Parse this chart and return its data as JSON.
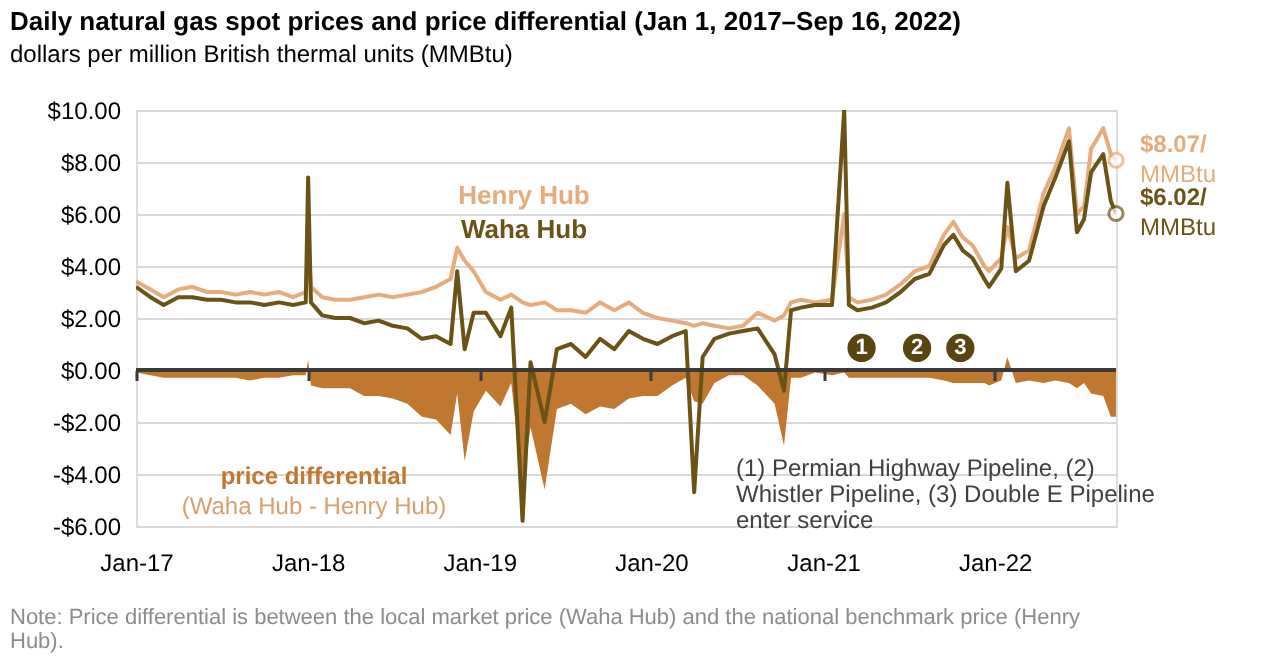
{
  "chart_data": {
    "type": "line",
    "title": "Daily natural gas spot prices and price differential (Jan 1, 2017–Sep 16, 2022)",
    "subtitle": "dollars per million British thermal units (MMBtu)",
    "x": [
      "2017-01-01",
      "2017-02-01",
      "2017-03-01",
      "2017-04-01",
      "2017-05-01",
      "2017-06-01",
      "2017-07-01",
      "2017-08-01",
      "2017-09-01",
      "2017-10-01",
      "2017-11-01",
      "2017-12-01",
      "2017-12-28",
      "2018-01-02",
      "2018-01-08",
      "2018-02-01",
      "2018-03-01",
      "2018-04-01",
      "2018-05-01",
      "2018-06-01",
      "2018-07-01",
      "2018-08-01",
      "2018-09-01",
      "2018-10-01",
      "2018-11-01",
      "2018-11-15",
      "2018-12-01",
      "2018-12-20",
      "2019-01-15",
      "2019-02-15",
      "2019-03-10",
      "2019-04-03",
      "2019-04-20",
      "2019-05-20",
      "2019-06-15",
      "2019-07-15",
      "2019-08-15",
      "2019-09-15",
      "2019-10-15",
      "2019-11-15",
      "2019-12-15",
      "2020-01-15",
      "2020-02-15",
      "2020-03-15",
      "2020-04-02",
      "2020-04-20",
      "2020-05-15",
      "2020-06-15",
      "2020-07-15",
      "2020-08-15",
      "2020-09-20",
      "2020-10-10",
      "2020-10-25",
      "2020-11-15",
      "2020-12-15",
      "2021-01-20",
      "2021-02-15",
      "2021-02-25",
      "2021-03-15",
      "2021-04-15",
      "2021-05-15",
      "2021-06-15",
      "2021-07-15",
      "2021-08-15",
      "2021-09-15",
      "2021-10-05",
      "2021-10-25",
      "2021-11-15",
      "2021-12-10",
      "2021-12-20",
      "2022-01-15",
      "2022-01-28",
      "2022-02-15",
      "2022-03-15",
      "2022-04-15",
      "2022-05-10",
      "2022-06-08",
      "2022-06-25",
      "2022-07-10",
      "2022-07-25",
      "2022-08-20",
      "2022-09-05",
      "2022-09-16"
    ],
    "series": [
      {
        "name": "price differential\n(Waha Hub - Henry Hub)",
        "type": "area",
        "color": "#c0772f",
        "values": [
          -0.1,
          -0.2,
          -0.3,
          -0.3,
          -0.3,
          -0.3,
          -0.3,
          -0.3,
          -0.4,
          -0.3,
          -0.3,
          -0.2,
          -0.2,
          0.4,
          -0.6,
          -0.7,
          -0.7,
          -0.7,
          -1.0,
          -1.0,
          -1.1,
          -1.3,
          -1.8,
          -1.9,
          -2.5,
          -0.9,
          -3.5,
          -1.6,
          -0.8,
          -1.4,
          -0.5,
          -4.6,
          -2.2,
          -4.6,
          -1.5,
          -1.3,
          -1.7,
          -1.4,
          -1.5,
          -1.1,
          -1.0,
          -1.0,
          -0.6,
          -0.3,
          -1.2,
          -1.3,
          -0.5,
          -0.2,
          -0.2,
          -0.6,
          -1.3,
          -2.9,
          -0.3,
          -0.3,
          -0.1,
          -0.2,
          -0.1,
          -0.3,
          -0.3,
          -0.3,
          -0.3,
          -0.3,
          -0.3,
          -0.3,
          -0.4,
          -0.5,
          -0.5,
          -0.5,
          -0.5,
          -0.6,
          -0.4,
          0.5,
          -0.5,
          -0.4,
          -0.5,
          -0.4,
          -0.5,
          -0.7,
          -0.5,
          -0.9,
          -1.0,
          -1.8,
          -1.8
        ]
      },
      {
        "name": "Henry Hub",
        "color": "#e5ad7e",
        "values": [
          3.4,
          3.1,
          2.8,
          3.1,
          3.2,
          3.0,
          3.0,
          2.9,
          3.0,
          2.9,
          3.0,
          2.8,
          3.0,
          5.0,
          3.2,
          2.8,
          2.7,
          2.7,
          2.8,
          2.9,
          2.8,
          2.9,
          3.0,
          3.2,
          3.5,
          4.7,
          4.2,
          3.8,
          3.0,
          2.7,
          2.9,
          2.6,
          2.5,
          2.6,
          2.3,
          2.3,
          2.2,
          2.6,
          2.3,
          2.6,
          2.2,
          2.0,
          1.9,
          1.8,
          1.7,
          1.8,
          1.7,
          1.6,
          1.7,
          2.2,
          1.9,
          2.1,
          2.6,
          2.7,
          2.6,
          2.7,
          6.0,
          2.8,
          2.6,
          2.7,
          2.9,
          3.3,
          3.8,
          4.0,
          5.2,
          5.7,
          5.1,
          4.8,
          4.0,
          3.8,
          4.3,
          5.5,
          4.3,
          4.6,
          6.8,
          7.8,
          9.3,
          6.0,
          6.3,
          8.5,
          9.3,
          8.3,
          8.07
        ]
      },
      {
        "name": "Waha Hub",
        "color": "#6b5315",
        "values": [
          3.2,
          2.8,
          2.5,
          2.8,
          2.8,
          2.7,
          2.7,
          2.6,
          2.6,
          2.5,
          2.6,
          2.5,
          2.6,
          7.4,
          2.6,
          2.1,
          2.0,
          2.0,
          1.8,
          1.9,
          1.7,
          1.6,
          1.2,
          1.3,
          1.0,
          3.8,
          0.8,
          2.2,
          2.2,
          1.3,
          2.4,
          -5.8,
          0.3,
          -2.0,
          0.8,
          1.0,
          0.5,
          1.2,
          0.8,
          1.5,
          1.2,
          1.0,
          1.3,
          1.5,
          -4.7,
          0.5,
          1.2,
          1.4,
          1.5,
          1.6,
          0.6,
          -0.8,
          2.3,
          2.4,
          2.5,
          2.5,
          10.0,
          2.5,
          2.3,
          2.4,
          2.6,
          3.0,
          3.5,
          3.7,
          4.8,
          5.2,
          4.6,
          4.3,
          3.5,
          3.2,
          3.9,
          7.2,
          3.8,
          4.2,
          6.3,
          7.4,
          8.8,
          5.3,
          5.8,
          7.6,
          8.3,
          6.5,
          6.02
        ]
      }
    ],
    "xlim": [
      "2017-01-01",
      "2022-09-16"
    ],
    "xticks": [
      {
        "value": "2017-01-01",
        "label": "Jan-17"
      },
      {
        "value": "2018-01-01",
        "label": "Jan-18"
      },
      {
        "value": "2019-01-01",
        "label": "Jan-19"
      },
      {
        "value": "2020-01-01",
        "label": "Jan-20"
      },
      {
        "value": "2021-01-01",
        "label": "Jan-21"
      },
      {
        "value": "2022-01-01",
        "label": "Jan-22"
      }
    ],
    "ylim": [
      -6,
      10
    ],
    "yticks": [
      {
        "value": -6,
        "label": "-$6.00"
      },
      {
        "value": -4,
        "label": "-$4.00"
      },
      {
        "value": -2,
        "label": "-$2.00"
      },
      {
        "value": 0,
        "label": "$0.00"
      },
      {
        "value": 2,
        "label": "$2.00"
      },
      {
        "value": 4,
        "label": "$4.00"
      },
      {
        "value": 6,
        "label": "$6.00"
      },
      {
        "value": 8,
        "label": "$8.00"
      },
      {
        "value": 10,
        "label": "$10.00"
      }
    ],
    "grid": "y",
    "legend": false,
    "ref_lines": [
      {
        "axis": "y",
        "value": 0,
        "color": "#3a3a3a"
      }
    ],
    "annotations": [
      {
        "text": "$8.07/\nMMBtu",
        "x": "2022-09-16",
        "y": 8.07
      },
      {
        "text": "$6.02/\nMMBtu",
        "x": "2022-09-16",
        "y": 6.02
      },
      {
        "text": "1",
        "x": "2021-03-24",
        "y": 0.85
      },
      {
        "text": "2",
        "x": "2021-07-20",
        "y": 0.85
      },
      {
        "text": "3",
        "x": "2021-10-20",
        "y": 0.85
      },
      "(1) Permian Highway Pipeline, (2)\nWhistler Pipeline, (3) Double E Pipeline\nenter service",
      "Note: Price differential is between the local market price (Waha Hub) and the national benchmark price (Henry\nHub)."
    ]
  }
}
